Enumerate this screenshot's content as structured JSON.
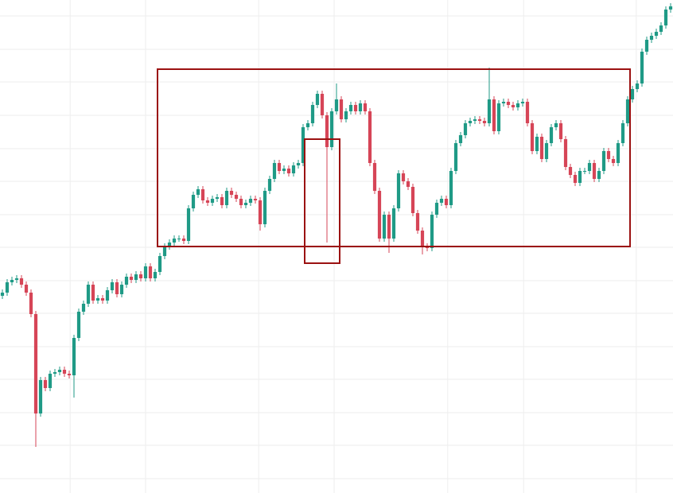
{
  "chart_data": {
    "type": "candlestick",
    "up_color": "#1f9a86",
    "down_color": "#d64557",
    "grid": true,
    "grid_color": "#eeeeee",
    "xlim": [
      -0.5,
      140.5
    ],
    "ylim": [
      0,
      620
    ],
    "xticks": [
      14.2,
      30,
      53.7,
      69.5,
      93.3,
      109.2,
      132.8
    ],
    "yticks": [
      600,
      558,
      517,
      475,
      433,
      392,
      350,
      309,
      267,
      226,
      184,
      143,
      101,
      60,
      18
    ],
    "open": [
      248,
      252,
      265,
      268,
      270,
      262,
      252,
      225,
      100,
      142,
      132,
      150,
      152,
      155,
      150,
      148,
      195,
      228,
      238,
      262,
      242,
      245,
      242,
      255,
      265,
      250,
      262,
      272,
      268,
      275,
      270,
      285,
      270,
      278,
      298,
      310,
      315,
      320,
      320,
      317,
      358,
      375,
      382,
      368,
      365,
      370,
      372,
      362,
      380,
      375,
      370,
      362,
      365,
      370,
      368,
      338,
      380,
      395,
      415,
      405,
      408,
      402,
      412,
      415,
      460,
      465,
      488,
      502,
      475,
      435,
      480,
      495,
      470,
      480,
      488,
      480,
      490,
      480,
      415,
      380,
      320,
      350,
      320,
      358,
      402,
      392,
      385,
      352,
      330,
      310,
      308,
      350,
      365,
      370,
      362,
      405,
      440,
      450,
      465,
      468,
      470,
      468,
      465,
      495,
      455,
      490,
      492,
      488,
      485,
      490,
      492,
      465,
      430,
      448,
      420,
      440,
      460,
      465,
      445,
      410,
      400,
      390,
      405,
      405,
      415,
      395,
      405,
      430,
      420,
      415,
      440,
      465,
      495,
      508,
      515,
      555,
      570,
      575,
      580,
      588,
      608
    ],
    "high": [
      256,
      269,
      272,
      274,
      274,
      266,
      256,
      229,
      146,
      146,
      154,
      156,
      159,
      159,
      154,
      199,
      232,
      242,
      266,
      266,
      249,
      249,
      259,
      269,
      269,
      266,
      276,
      276,
      279,
      279,
      289,
      289,
      282,
      302,
      314,
      319,
      324,
      324,
      324,
      362,
      379,
      386,
      386,
      372,
      374,
      376,
      376,
      384,
      384,
      379,
      374,
      369,
      374,
      374,
      372,
      384,
      399,
      419,
      419,
      412,
      412,
      416,
      419,
      464,
      469,
      492,
      506,
      506,
      479,
      484,
      515,
      499,
      484,
      492,
      492,
      494,
      494,
      484,
      419,
      384,
      354,
      354,
      362,
      406,
      406,
      396,
      389,
      356,
      334,
      314,
      354,
      369,
      374,
      374,
      409,
      444,
      454,
      469,
      472,
      474,
      474,
      472,
      535,
      499,
      494,
      496,
      496,
      492,
      494,
      496,
      496,
      469,
      452,
      452,
      444,
      464,
      469,
      469,
      449,
      414,
      404,
      409,
      409,
      419,
      419,
      409,
      434,
      434,
      424,
      444,
      469,
      499,
      512,
      519,
      559,
      574,
      579,
      584,
      592,
      612,
      616
    ],
    "low": [
      244,
      248,
      261,
      264,
      258,
      248,
      221,
      58,
      96,
      128,
      128,
      146,
      148,
      146,
      144,
      120,
      191,
      224,
      234,
      238,
      238,
      238,
      238,
      251,
      246,
      246,
      258,
      264,
      264,
      266,
      266,
      266,
      266,
      274,
      294,
      306,
      311,
      316,
      313,
      313,
      354,
      371,
      364,
      361,
      361,
      366,
      358,
      358,
      371,
      366,
      358,
      358,
      361,
      364,
      330,
      334,
      376,
      391,
      401,
      401,
      398,
      398,
      408,
      411,
      456,
      461,
      484,
      471,
      315,
      431,
      476,
      466,
      466,
      476,
      476,
      476,
      476,
      411,
      376,
      316,
      316,
      302,
      316,
      354,
      388,
      381,
      348,
      326,
      300,
      304,
      304,
      346,
      361,
      358,
      358,
      401,
      436,
      446,
      461,
      464,
      464,
      461,
      461,
      451,
      451,
      486,
      484,
      481,
      481,
      486,
      461,
      426,
      426,
      416,
      416,
      436,
      456,
      441,
      406,
      396,
      386,
      386,
      401,
      401,
      391,
      391,
      401,
      416,
      411,
      411,
      436,
      461,
      491,
      504,
      511,
      551,
      566,
      571,
      576,
      584,
      604
    ],
    "close": [
      252,
      265,
      268,
      270,
      262,
      252,
      225,
      100,
      142,
      132,
      150,
      152,
      155,
      150,
      148,
      195,
      228,
      238,
      262,
      242,
      245,
      242,
      255,
      265,
      250,
      262,
      272,
      268,
      275,
      270,
      285,
      270,
      278,
      298,
      310,
      315,
      320,
      320,
      317,
      358,
      375,
      382,
      368,
      365,
      370,
      372,
      362,
      380,
      375,
      370,
      362,
      365,
      370,
      368,
      338,
      380,
      395,
      415,
      405,
      408,
      402,
      412,
      415,
      460,
      465,
      488,
      502,
      475,
      435,
      480,
      495,
      470,
      480,
      488,
      480,
      490,
      480,
      415,
      380,
      320,
      350,
      320,
      358,
      402,
      392,
      385,
      352,
      330,
      310,
      308,
      350,
      365,
      370,
      362,
      405,
      440,
      450,
      465,
      468,
      470,
      468,
      465,
      495,
      455,
      490,
      492,
      488,
      485,
      490,
      492,
      465,
      430,
      448,
      420,
      440,
      460,
      465,
      445,
      410,
      400,
      390,
      405,
      405,
      415,
      395,
      405,
      430,
      420,
      415,
      440,
      465,
      495,
      508,
      515,
      555,
      570,
      575,
      580,
      588,
      608,
      612
    ]
  }
}
